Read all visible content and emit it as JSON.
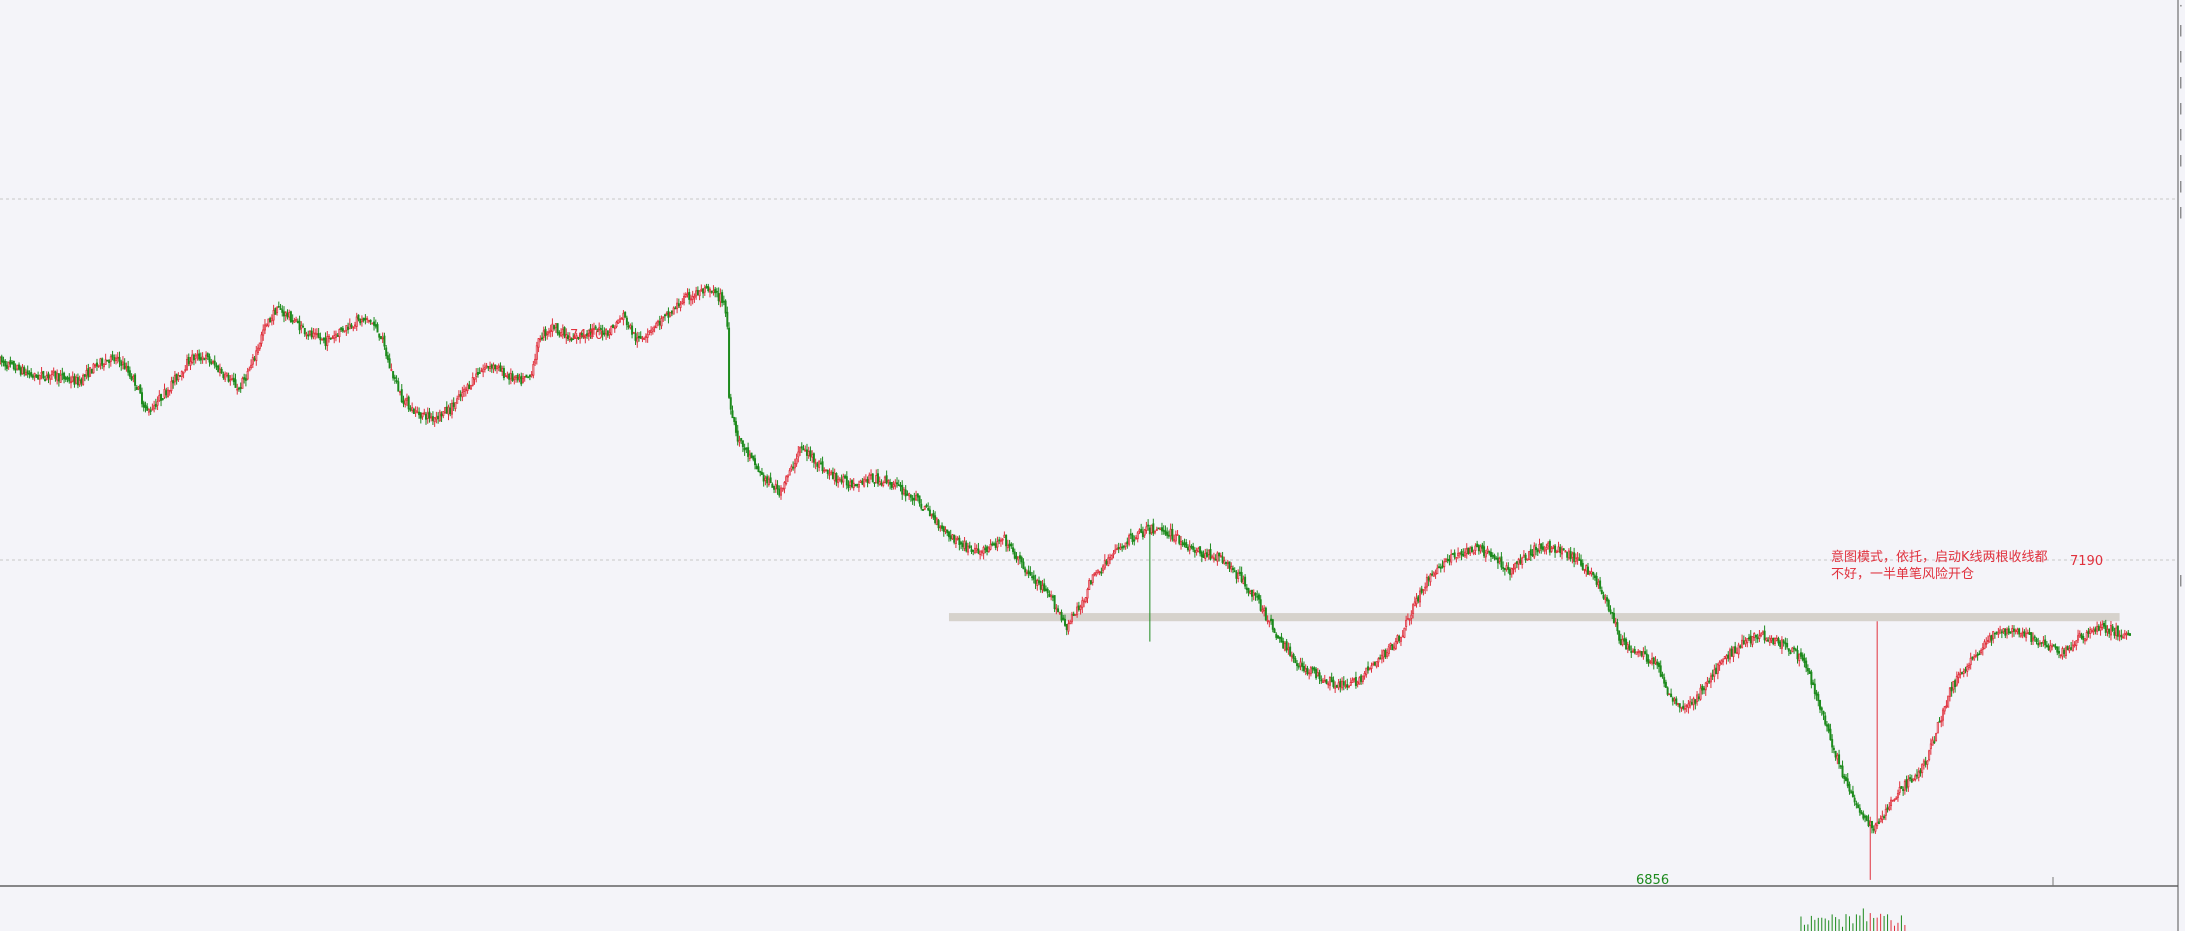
{
  "chart_data": {
    "type": "candlestick",
    "title": "",
    "xlabel": "",
    "ylabel": "",
    "ylim": [
      6850,
      7720
    ],
    "colors": {
      "up": "#e0313d",
      "down": "#1d8a1d",
      "zone": "#d6d2cc",
      "grid": "#c8c8c8",
      "background": "#f4f4f9"
    },
    "grid": "dashed horizontal",
    "waypoints": [
      [
        0,
        7365
      ],
      [
        10,
        7358
      ],
      [
        20,
        7350
      ],
      [
        30,
        7352
      ],
      [
        45,
        7345
      ],
      [
        55,
        7360
      ],
      [
        62,
        7368
      ],
      [
        70,
        7365
      ],
      [
        78,
        7345
      ],
      [
        85,
        7315
      ],
      [
        93,
        7330
      ],
      [
        100,
        7345
      ],
      [
        110,
        7368
      ],
      [
        118,
        7370
      ],
      [
        128,
        7355
      ],
      [
        138,
        7338
      ],
      [
        145,
        7360
      ],
      [
        152,
        7395
      ],
      [
        160,
        7418
      ],
      [
        170,
        7405
      ],
      [
        180,
        7390
      ],
      [
        188,
        7385
      ],
      [
        196,
        7395
      ],
      [
        206,
        7405
      ],
      [
        214,
        7405
      ],
      [
        220,
        7390
      ],
      [
        225,
        7360
      ],
      [
        232,
        7330
      ],
      [
        240,
        7315
      ],
      [
        250,
        7310
      ],
      [
        260,
        7318
      ],
      [
        268,
        7335
      ],
      [
        276,
        7355
      ],
      [
        284,
        7362
      ],
      [
        292,
        7352
      ],
      [
        300,
        7345
      ],
      [
        306,
        7350
      ],
      [
        312,
        7390
      ],
      [
        320,
        7400
      ],
      [
        330,
        7385
      ],
      [
        340,
        7395
      ],
      [
        352,
        7395
      ],
      [
        360,
        7410
      ],
      [
        368,
        7385
      ],
      [
        376,
        7398
      ],
      [
        386,
        7410
      ],
      [
        394,
        7425
      ],
      [
        400,
        7430
      ],
      [
        406,
        7434
      ],
      [
        412,
        7432
      ],
      [
        418,
        7425
      ],
      [
        420,
        7400
      ],
      [
        421,
        7330
      ],
      [
        426,
        7290
      ],
      [
        434,
        7268
      ],
      [
        442,
        7248
      ],
      [
        450,
        7238
      ],
      [
        456,
        7255
      ],
      [
        462,
        7280
      ],
      [
        470,
        7270
      ],
      [
        478,
        7255
      ],
      [
        490,
        7245
      ],
      [
        502,
        7250
      ],
      [
        512,
        7248
      ],
      [
        520,
        7240
      ],
      [
        530,
        7228
      ],
      [
        540,
        7210
      ],
      [
        548,
        7195
      ],
      [
        556,
        7185
      ],
      [
        564,
        7178
      ],
      [
        572,
        7182
      ],
      [
        580,
        7190
      ],
      [
        588,
        7170
      ],
      [
        596,
        7152
      ],
      [
        608,
        7130
      ],
      [
        616,
        7105
      ],
      [
        624,
        7125
      ],
      [
        630,
        7150
      ],
      [
        640,
        7170
      ],
      [
        648,
        7185
      ],
      [
        656,
        7195
      ],
      [
        664,
        7200
      ],
      [
        672,
        7200
      ],
      [
        680,
        7192
      ],
      [
        690,
        7178
      ],
      [
        700,
        7175
      ],
      [
        706,
        7170
      ],
      [
        712,
        7160
      ],
      [
        720,
        7145
      ],
      [
        728,
        7125
      ],
      [
        736,
        7100
      ],
      [
        744,
        7080
      ],
      [
        752,
        7065
      ],
      [
        760,
        7058
      ],
      [
        770,
        7050
      ],
      [
        778,
        7045
      ],
      [
        786,
        7055
      ],
      [
        794,
        7068
      ],
      [
        802,
        7082
      ],
      [
        810,
        7100
      ],
      [
        818,
        7130
      ],
      [
        826,
        7155
      ],
      [
        834,
        7168
      ],
      [
        842,
        7175
      ],
      [
        850,
        7180
      ],
      [
        858,
        7178
      ],
      [
        864,
        7170
      ],
      [
        872,
        7160
      ],
      [
        880,
        7172
      ],
      [
        890,
        7185
      ],
      [
        898,
        7180
      ],
      [
        906,
        7175
      ],
      [
        914,
        7165
      ],
      [
        922,
        7150
      ],
      [
        930,
        7120
      ],
      [
        936,
        7090
      ],
      [
        944,
        7080
      ],
      [
        950,
        7075
      ],
      [
        956,
        7070
      ],
      [
        962,
        7045
      ],
      [
        968,
        7030
      ],
      [
        974,
        7025
      ],
      [
        980,
        7035
      ],
      [
        986,
        7050
      ],
      [
        994,
        7068
      ],
      [
        1000,
        7080
      ],
      [
        1008,
        7090
      ],
      [
        1016,
        7098
      ],
      [
        1024,
        7092
      ],
      [
        1032,
        7085
      ],
      [
        1040,
        7075
      ],
      [
        1046,
        7052
      ],
      [
        1052,
        7022
      ],
      [
        1058,
        6990
      ],
      [
        1064,
        6960
      ],
      [
        1070,
        6935
      ],
      [
        1076,
        6918
      ],
      [
        1082,
        6905
      ],
      [
        1086,
        6915
      ],
      [
        1092,
        6935
      ],
      [
        1100,
        6948
      ],
      [
        1108,
        6960
      ],
      [
        1114,
        6980
      ],
      [
        1120,
        7012
      ],
      [
        1126,
        7040
      ],
      [
        1132,
        7060
      ],
      [
        1138,
        7072
      ],
      [
        1144,
        7082
      ],
      [
        1150,
        7095
      ],
      [
        1156,
        7100
      ],
      [
        1162,
        7102
      ],
      [
        1170,
        7098
      ],
      [
        1176,
        7090
      ],
      [
        1182,
        7085
      ],
      [
        1188,
        7080
      ],
      [
        1194,
        7082
      ],
      [
        1200,
        7092
      ],
      [
        1206,
        7100
      ],
      [
        1212,
        7104
      ],
      [
        1218,
        7102
      ],
      [
        1224,
        7098
      ],
      [
        1230,
        7092
      ]
    ]
  },
  "labels": {
    "high": "7440",
    "low": "6856",
    "recent_high": "7190"
  },
  "annotation": {
    "line1": "意图模式，依托，启动K线两根收线都",
    "line2": "不好，一半单笔风险开仓"
  },
  "support_zone": {
    "from_price": 7110,
    "to_price": 7118,
    "start_bar": 548,
    "end_bar": 1224
  }
}
